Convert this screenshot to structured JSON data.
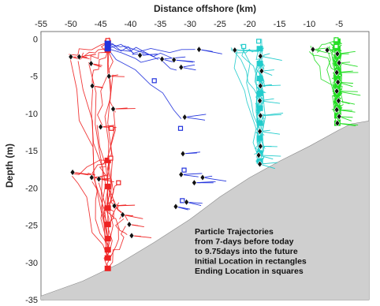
{
  "chart_data": {
    "type": "line",
    "title": "",
    "xlabel": "Distance offshore (km)",
    "ylabel": "Depth (m)",
    "xlim": [
      -55,
      0
    ],
    "ylim": [
      -35,
      1
    ],
    "x_ticks": [
      "-55",
      "-50",
      "-45",
      "-40",
      "-35",
      "-30",
      "-25",
      "-20",
      "-15",
      "-10",
      "-5"
    ],
    "y_ticks": [
      "0",
      "-5",
      "-10",
      "-15",
      "-20",
      "-25",
      "-30",
      "-35"
    ],
    "x_tick_values": [
      -55,
      -50,
      -45,
      -40,
      -35,
      -30,
      -25,
      -20,
      -15,
      -10,
      -5
    ],
    "y_tick_values": [
      0,
      -5,
      -10,
      -15,
      -20,
      -25,
      -30,
      -35
    ],
    "annotation": [
      "Particle Trajectories",
      "from 7-days before today",
      "to 9.75days into the future",
      "Initial Location in rectangles",
      "Ending Location in squares"
    ],
    "seafloor": {
      "color": "#cfcfcf",
      "x": [
        -55,
        -48,
        -42,
        -36,
        -30,
        -25,
        -20,
        -15,
        -10,
        -5,
        -3,
        0
      ],
      "y": [
        -34.5,
        -32.5,
        -30.2,
        -27.3,
        -24.2,
        -21.2,
        -18.6,
        -16.4,
        -14.4,
        -12.2,
        -11.4,
        -11.0
      ]
    },
    "series": [
      {
        "color": "#ee2222",
        "start_x": -43.8,
        "start_depths": [
          -0.5,
          -1.5,
          -16.3,
          -19.8,
          -22.7,
          -24.9,
          -26.8,
          -28.3,
          -29.4,
          -30.8
        ],
        "end_points": [
          [
            -43.8,
            -0.2
          ],
          [
            -43.2,
            -12.0
          ],
          [
            -43.3,
            -16.0
          ],
          [
            -42.0,
            -19.3
          ]
        ],
        "diamonds": [
          [
            -50.0,
            -2.4
          ],
          [
            -48.6,
            -2.4
          ],
          [
            -46.6,
            -3.3
          ],
          [
            -46.4,
            -6.3
          ],
          [
            -45.0,
            -11.8
          ],
          [
            -42.9,
            -9.4
          ],
          [
            -49.7,
            -17.9
          ],
          [
            -46.5,
            -18.6
          ],
          [
            -45.3,
            -18.8
          ],
          [
            -42.7,
            -22.4
          ],
          [
            -41.3,
            -23.6
          ],
          [
            -40.2,
            -24.9
          ],
          [
            -39.8,
            -26.4
          ],
          [
            -43.6,
            -5.0
          ]
        ]
      },
      {
        "color": "#2233dd",
        "start_x": -43.8,
        "start_depths": [
          -0.6,
          -1.3
        ],
        "end_points": [
          [
            -36.0,
            -5.6
          ],
          [
            -31.6,
            -12.0
          ],
          [
            -31.0,
            -17.6
          ],
          [
            -31.3,
            -21.7
          ]
        ],
        "diamonds": [
          [
            -38.4,
            -2.2
          ],
          [
            -34.7,
            -2.7
          ],
          [
            -32.7,
            -2.8
          ],
          [
            -31.5,
            -3.8
          ],
          [
            -28.5,
            -1.4
          ],
          [
            -30.9,
            -10.5
          ],
          [
            -31.2,
            -15.4
          ],
          [
            -31.5,
            -18.2
          ],
          [
            -29.3,
            -19.3
          ],
          [
            -27.9,
            -18.6
          ],
          [
            -30.6,
            -21.9
          ],
          [
            -32.4,
            -22.5
          ]
        ]
      },
      {
        "color": "#22cccc",
        "start_x": -18.3,
        "start_depths": [
          -1.3,
          -3.3,
          -5.3,
          -7.3,
          -9.3,
          -11.3,
          -13.3,
          -15.3,
          -16.4
        ],
        "end_points": [
          [
            -21.0,
            -1.0
          ],
          [
            -18.5,
            -0.3
          ]
        ],
        "diamonds": [
          [
            -22.5,
            -1.5
          ],
          [
            -18.2,
            -2.3
          ],
          [
            -18.0,
            -4.3
          ],
          [
            -18.2,
            -6.3
          ],
          [
            -18.3,
            -8.3
          ],
          [
            -18.2,
            -10.3
          ],
          [
            -18.3,
            -12.4
          ],
          [
            -18.2,
            -14.4
          ],
          [
            -18.5,
            -15.6
          ],
          [
            -18.3,
            -16.8
          ]
        ]
      },
      {
        "color": "#22dd22",
        "start_x": -5.3,
        "start_depths": [
          -0.3,
          -1.3,
          -2.3,
          -3.3,
          -4.3,
          -5.3,
          -6.3,
          -7.3,
          -8.3,
          -9.3,
          -10.3,
          -11.3
        ],
        "end_points": [
          [
            -5.5,
            -0.1
          ],
          [
            -5.5,
            -1.0
          ]
        ],
        "diamonds": [
          [
            -9.4,
            -1.4
          ],
          [
            -7.0,
            -1.5
          ],
          [
            -5.3,
            -2.0
          ],
          [
            -5.0,
            -3.2
          ],
          [
            -5.4,
            -4.5
          ],
          [
            -5.2,
            -5.8
          ],
          [
            -5.4,
            -7.0
          ],
          [
            -5.1,
            -8.3
          ],
          [
            -5.4,
            -9.5
          ],
          [
            -5.0,
            -10.4
          ],
          [
            -5.3,
            -11.3
          ]
        ]
      }
    ]
  }
}
